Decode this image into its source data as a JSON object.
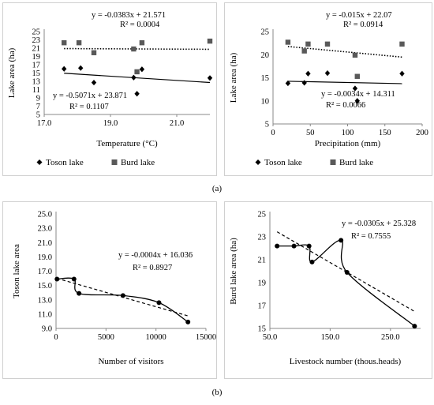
{
  "captions": {
    "a": "(a)",
    "b": "(b)"
  },
  "chart_data": [
    {
      "type": "scatter",
      "xlabel": "Temperature (°C)",
      "ylabel": "Lake area (ha)",
      "xlim": [
        17.0,
        22.0
      ],
      "ylim": [
        5,
        25
      ],
      "xticks": [
        "17.0",
        "19.0",
        "21.0"
      ],
      "yticks": [
        "5",
        "7",
        "9",
        "11",
        "13",
        "15",
        "17",
        "19",
        "21",
        "23",
        "25"
      ],
      "legend": "bottom",
      "series": [
        {
          "name": "Toson lake",
          "marker": "diamond",
          "color": "#000000",
          "x": [
            17.6,
            18.1,
            18.5,
            19.7,
            19.8,
            19.95,
            22.0
          ],
          "y": [
            16.0,
            16.2,
            12.7,
            13.9,
            10.0,
            15.9,
            13.8
          ],
          "trend": {
            "line": "solid",
            "slope": -0.5071,
            "intercept": 23.871,
            "equation": "y = -0.5071x + 23.871",
            "r2": "R² = 0.1107"
          }
        },
        {
          "name": "Burd lake",
          "marker": "square",
          "color": "#595959",
          "x": [
            17.6,
            18.05,
            18.5,
            19.7,
            19.8,
            19.95,
            22.0
          ],
          "y": [
            22.3,
            22.3,
            19.9,
            20.8,
            15.3,
            22.3,
            22.7
          ],
          "trend": {
            "line": "dotted",
            "slope": -0.0383,
            "intercept": 21.571,
            "equation": "y = -0.0383x + 21.571",
            "r2": "R² = 0.0004"
          }
        }
      ]
    },
    {
      "type": "scatter",
      "xlabel": "Precipitation (mm)",
      "ylabel": "Lake area (ha)",
      "xlim": [
        0,
        200
      ],
      "ylim": [
        5,
        25
      ],
      "xticks": [
        "0",
        "50",
        "100",
        "150",
        "200"
      ],
      "yticks": [
        "5",
        "10",
        "15",
        "20",
        "25"
      ],
      "legend": "bottom",
      "series": [
        {
          "name": "Toson lake",
          "marker": "diamond",
          "color": "#000000",
          "x": [
            20,
            42,
            47,
            73,
            110,
            113,
            173
          ],
          "y": [
            13.8,
            13.9,
            15.9,
            16.0,
            12.7,
            10.0,
            15.9
          ],
          "trend": {
            "line": "solid",
            "slope": -0.0034,
            "intercept": 14.311,
            "equation": "y = -0.0034x + 14.311",
            "r2": "R² = 0.0066"
          }
        },
        {
          "name": "Burd lake",
          "marker": "square",
          "color": "#595959",
          "x": [
            20,
            42,
            47,
            73,
            110,
            113,
            173
          ],
          "y": [
            22.7,
            20.8,
            22.3,
            22.3,
            19.9,
            15.3,
            22.3
          ],
          "trend": {
            "line": "dotted",
            "slope": -0.015,
            "intercept": 22.07,
            "equation": "y = -0.015x + 22.07",
            "r2": "R² = 0.0914"
          }
        }
      ]
    },
    {
      "type": "line",
      "xlabel": "Number of visitors",
      "ylabel": "Toson lake area",
      "xlim": [
        0,
        15000
      ],
      "ylim": [
        9.0,
        25.0
      ],
      "xticks": [
        "0",
        "5000",
        "10000",
        "15000"
      ],
      "yticks": [
        "9.0",
        "11.0",
        "13.0",
        "15.0",
        "17.0",
        "19.0",
        "21.0",
        "23.0",
        "25.0"
      ],
      "series": [
        {
          "name": "",
          "marker": "circle",
          "color": "#000000",
          "x": [
            100,
            1800,
            2300,
            6700,
            10300,
            13200
          ],
          "y": [
            15.9,
            15.9,
            13.9,
            13.6,
            12.6,
            9.9
          ],
          "trend": {
            "line": "dashed",
            "slope": -0.0004,
            "intercept": 16.036,
            "equation": "y = -0.0004x + 16.036",
            "r2": "R² = 0.8927"
          }
        }
      ]
    },
    {
      "type": "line",
      "xlabel": "Livestock number (thous.heads)",
      "ylabel": "Burd lake area (ha)",
      "xlim": [
        50,
        300
      ],
      "ylim": [
        15,
        25
      ],
      "xticks": [
        "50.0",
        "150.0",
        "250.0"
      ],
      "yticks": [
        "15",
        "17",
        "19",
        "21",
        "23",
        "25"
      ],
      "series": [
        {
          "name": "",
          "marker": "circle",
          "color": "#000000",
          "x": [
            62,
            90,
            115,
            120,
            168,
            178,
            290
          ],
          "y": [
            22.2,
            22.2,
            22.2,
            20.8,
            22.7,
            19.9,
            15.2
          ],
          "trend": {
            "line": "dashed",
            "slope": -0.0305,
            "intercept": 25.328,
            "equation": "y = -0.0305x + 25.328",
            "r2": "R² = 0.7555"
          }
        }
      ]
    }
  ]
}
